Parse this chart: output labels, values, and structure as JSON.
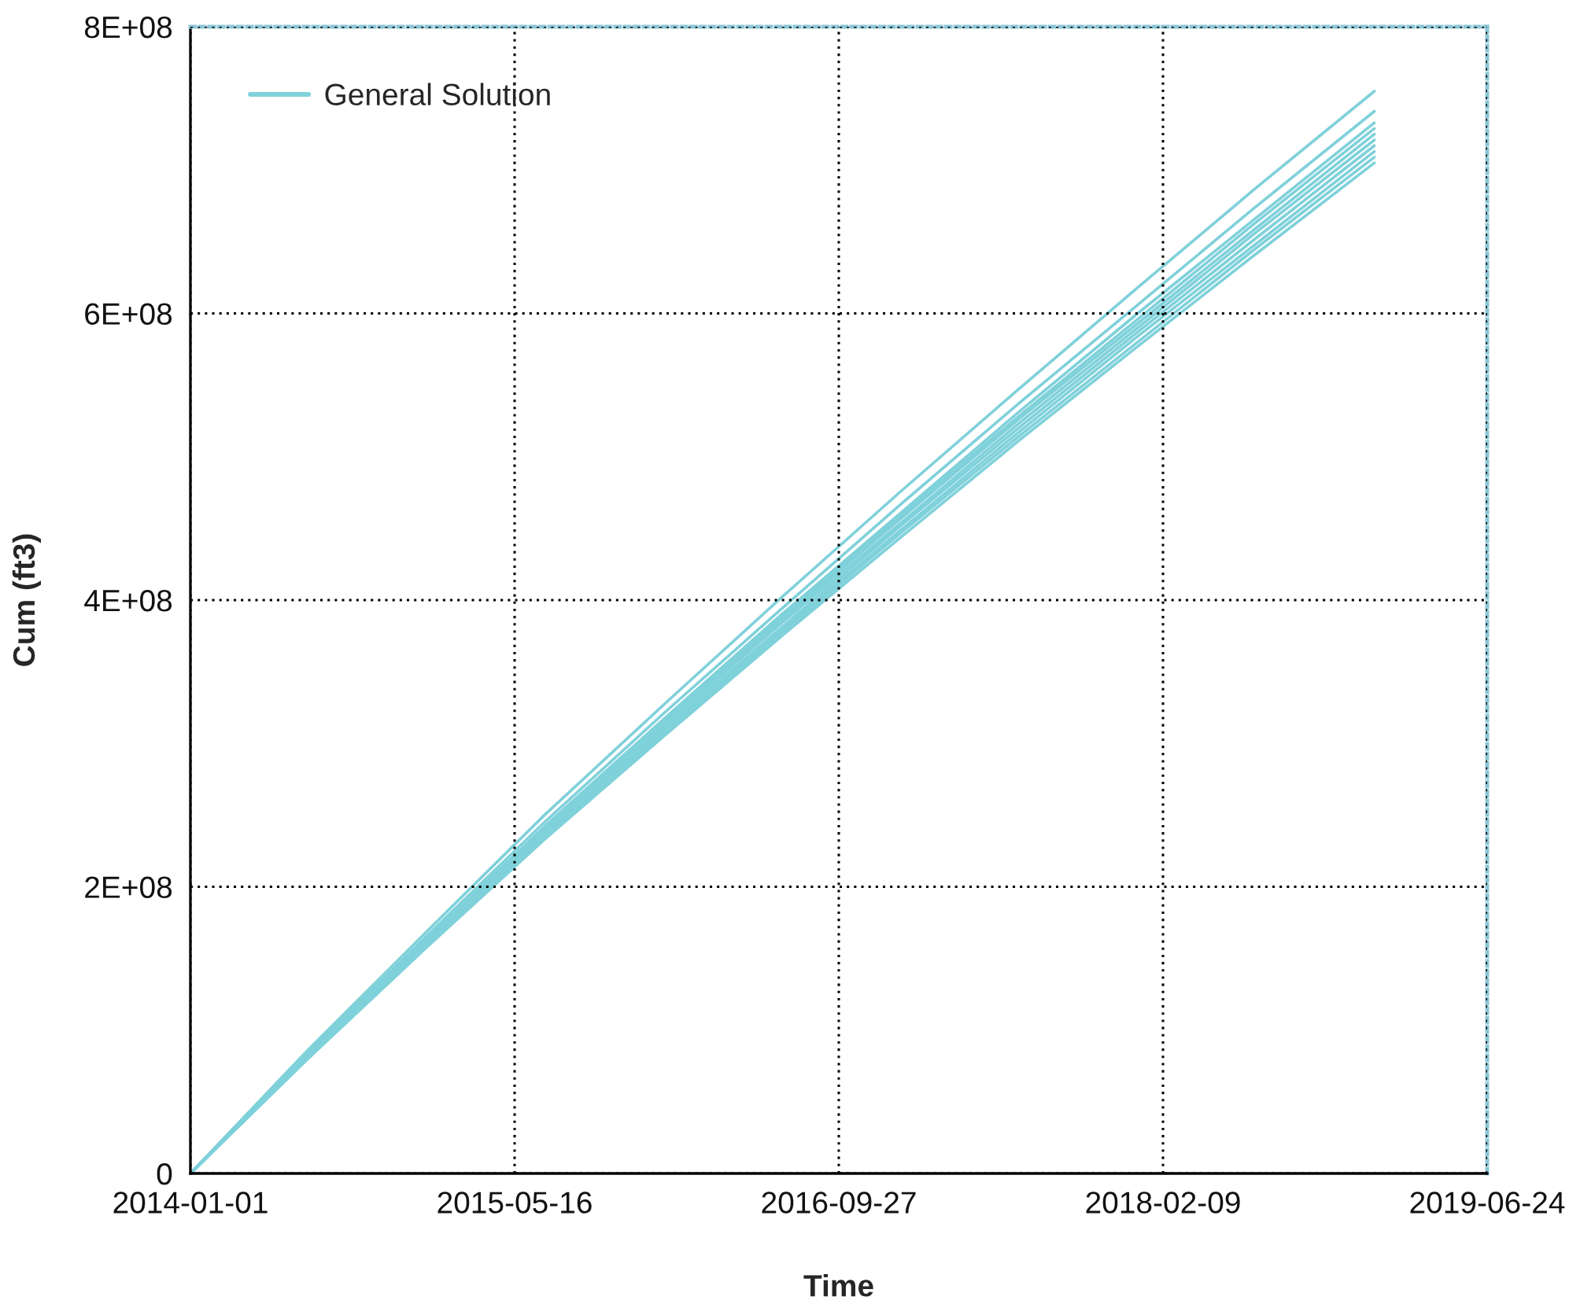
{
  "chart_data": {
    "type": "line",
    "xlabel": "Time",
    "ylabel": "Cum (ft3)",
    "x": [
      "2014-01-01",
      "2014-07-01",
      "2015-01-01",
      "2015-07-01",
      "2016-01-01",
      "2016-07-01",
      "2017-01-01",
      "2017-07-01",
      "2018-01-01",
      "2018-07-01",
      "2019-01-01"
    ],
    "xlim": [
      "2014-01-01",
      "2019-06-24"
    ],
    "xticks": [
      "2014-01-01",
      "2015-05-16",
      "2016-09-27",
      "2018-02-09",
      "2019-06-24"
    ],
    "ylim": [
      0,
      800000000
    ],
    "yticks": [
      0,
      {
        "value": 200000000,
        "label": "2E+08"
      },
      {
        "value": 400000000,
        "label": "4E+08"
      },
      {
        "value": 600000000,
        "label": "6E+08"
      },
      {
        "value": 800000000,
        "label": "8E+08"
      }
    ],
    "grid": true,
    "legend": "top left",
    "series": [
      {
        "name": "General Solution",
        "color": "#7fd1da",
        "values": [
          0,
          86000000,
          169000000,
          250000000,
          327000000,
          402000000,
          476000000,
          547000000,
          618000000,
          687000000,
          755000000
        ]
      },
      {
        "color": "#7fd1da",
        "values": [
          0,
          84000000,
          166000000,
          245000000,
          321000000,
          394000000,
          467000000,
          537000000,
          606000000,
          674000000,
          741000000
        ]
      },
      {
        "color": "#7fd1da",
        "values": [
          0,
          83000000,
          164000000,
          242000000,
          317000000,
          390000000,
          461000000,
          531000000,
          600000000,
          666000000,
          733000000
        ]
      },
      {
        "color": "#7fd1da",
        "values": [
          0,
          83000000,
          163000000,
          241000000,
          315000000,
          388000000,
          459000000,
          528000000,
          596000000,
          663000000,
          729000000
        ]
      },
      {
        "color": "#7fd1da",
        "values": [
          0,
          82000000,
          162000000,
          240000000,
          314000000,
          386000000,
          457000000,
          526000000,
          593000000,
          659000000,
          725000000
        ]
      },
      {
        "color": "#7fd1da",
        "values": [
          0,
          82000000,
          162000000,
          238000000,
          312000000,
          384000000,
          454000000,
          523000000,
          590000000,
          656000000,
          721000000
        ]
      },
      {
        "color": "#7fd1da",
        "values": [
          0,
          81000000,
          161000000,
          237000000,
          310000000,
          381000000,
          452000000,
          520000000,
          587000000,
          652000000,
          717000000
        ]
      },
      {
        "color": "#7fd1da",
        "values": [
          0,
          81000000,
          160000000,
          236000000,
          308000000,
          379000000,
          449000000,
          517000000,
          584000000,
          648000000,
          713000000
        ]
      },
      {
        "color": "#7fd1da",
        "values": [
          0,
          80000000,
          159000000,
          234000000,
          307000000,
          377000000,
          447000000,
          514000000,
          580000000,
          645000000,
          709000000
        ]
      },
      {
        "color": "#7fd1da",
        "values": [
          0,
          80000000,
          158000000,
          233000000,
          305000000,
          375000000,
          444000000,
          511000000,
          577000000,
          641000000,
          705000000
        ]
      }
    ]
  }
}
